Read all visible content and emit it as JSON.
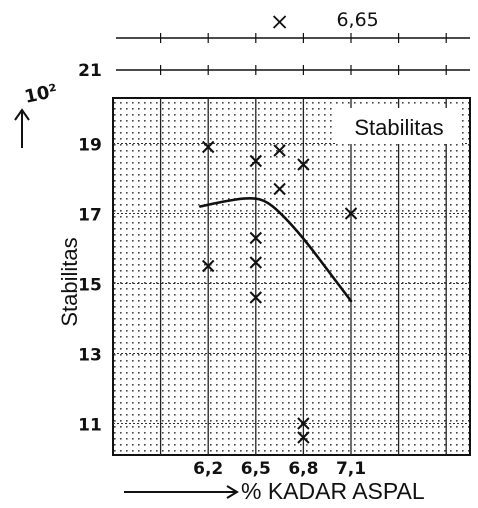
{
  "chart_data": {
    "type": "scatter",
    "title": "Stabilitas",
    "xlabel": "% KADAR ASPAL",
    "ylabel": "Stabilitas",
    "y_multiplier": "10²",
    "x_tick_labels": [
      "6,2",
      "6,5",
      "6,8",
      "7,1"
    ],
    "x_ticks": [
      6.2,
      6.5,
      6.8,
      7.1
    ],
    "y_tick_labels": [
      "11",
      "13",
      "15",
      "17",
      "19",
      "21"
    ],
    "y_ticks": [
      11,
      13,
      15,
      17,
      19,
      21
    ],
    "xlim": [
      5.6,
      7.85
    ],
    "ylim": [
      10.1,
      20.3
    ],
    "grid": true,
    "optimum_label": "6,65",
    "optimum_x": 6.65,
    "points": [
      {
        "x": 6.2,
        "y": 18.9
      },
      {
        "x": 6.2,
        "y": 15.5
      },
      {
        "x": 6.5,
        "y": 18.5
      },
      {
        "x": 6.5,
        "y": 16.3
      },
      {
        "x": 6.5,
        "y": 15.6
      },
      {
        "x": 6.5,
        "y": 14.6
      },
      {
        "x": 6.65,
        "y": 18.8
      },
      {
        "x": 6.65,
        "y": 17.7
      },
      {
        "x": 6.8,
        "y": 18.4
      },
      {
        "x": 6.8,
        "y": 11.0
      },
      {
        "x": 6.8,
        "y": 10.6
      },
      {
        "x": 7.1,
        "y": 17.0
      }
    ],
    "trend_curve": [
      {
        "x": 6.15,
        "y": 17.2
      },
      {
        "x": 6.3,
        "y": 17.35
      },
      {
        "x": 6.45,
        "y": 17.45
      },
      {
        "x": 6.55,
        "y": 17.4
      },
      {
        "x": 6.65,
        "y": 17.05
      },
      {
        "x": 6.8,
        "y": 16.3
      },
      {
        "x": 6.95,
        "y": 15.4
      },
      {
        "x": 7.1,
        "y": 14.5
      }
    ]
  }
}
